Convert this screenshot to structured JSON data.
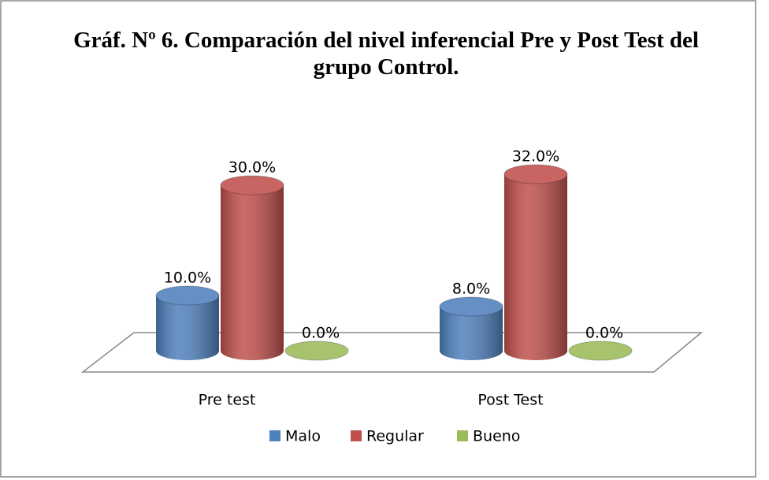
{
  "chart_data": {
    "type": "bar3d",
    "title": "Gráf. Nº 6. Comparación del nivel inferencial Pre y Post Test del grupo Control.",
    "categories": [
      "Pre test",
      "Post Test"
    ],
    "series": [
      {
        "name": "Malo",
        "color": "#4f81bd",
        "values": [
          10,
          8
        ],
        "value_labels": [
          "10.0%",
          "8.0%"
        ]
      },
      {
        "name": "Regular",
        "color": "#c0504d",
        "values": [
          30,
          32
        ],
        "value_labels": [
          "30.0%",
          "32.0%"
        ]
      },
      {
        "name": "Bueno",
        "color": "#9bbb59",
        "values": [
          0,
          0
        ],
        "value_labels": [
          "0.0%",
          "0.0%"
        ]
      }
    ],
    "legend": "bottom"
  }
}
